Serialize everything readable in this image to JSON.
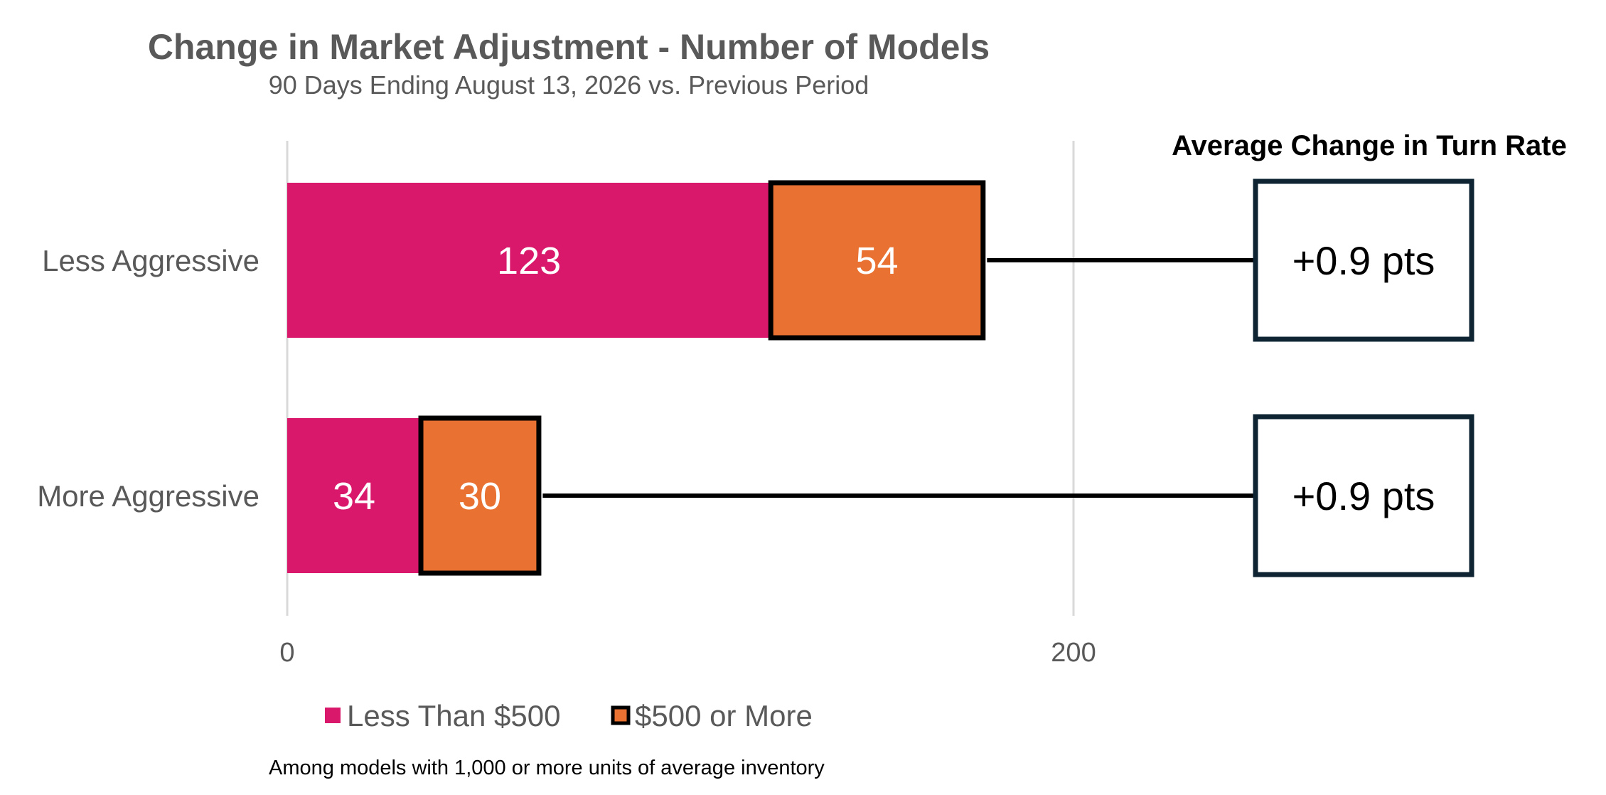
{
  "chart_data": {
    "type": "bar",
    "orientation": "horizontal",
    "stacked": true,
    "title": "Change in Market Adjustment - Number of Models",
    "subtitle": "90 Days Ending August 13, 2026 vs. Previous Period",
    "categories": [
      "Less Aggressive",
      "More Aggressive"
    ],
    "series": [
      {
        "name": "Less Than $500",
        "values": [
          123,
          34
        ],
        "color": "#D9186B"
      },
      {
        "name": "$500 or More",
        "values": [
          54,
          30
        ],
        "color": "#E97132"
      }
    ],
    "x_ticks": [
      "0",
      "200"
    ],
    "xlim": [
      0,
      300
    ],
    "grid": true,
    "legend_position": "bottom",
    "side_panel": {
      "title": "Average Change in Turn Rate",
      "values": [
        "+0.9 pts",
        "+0.9 pts"
      ]
    },
    "footnote": "Among models with 1,000 or more units of average inventory"
  }
}
